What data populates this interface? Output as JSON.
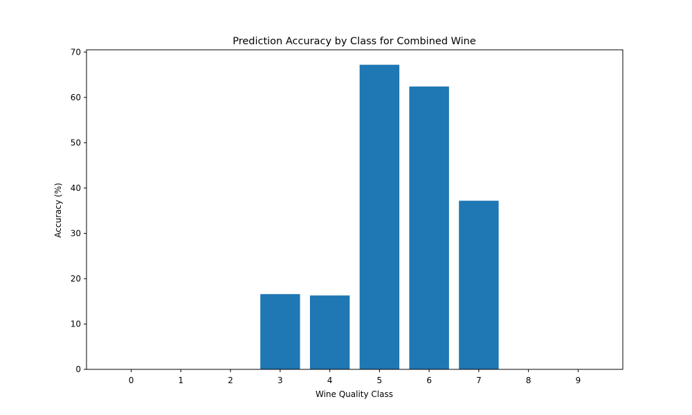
{
  "chart_data": {
    "type": "bar",
    "title": "Prediction Accuracy by Class for Combined Wine",
    "xlabel": "Wine Quality Class",
    "ylabel": "Accuracy (%)",
    "categories": [
      "0",
      "1",
      "2",
      "3",
      "4",
      "5",
      "6",
      "7",
      "8",
      "9"
    ],
    "values": [
      0,
      0,
      0,
      16.6,
      16.3,
      67.2,
      62.4,
      37.2,
      0,
      0
    ],
    "ylim": [
      0,
      70.5
    ],
    "yticks": [
      0,
      10,
      20,
      30,
      40,
      50,
      60,
      70
    ],
    "grid": false,
    "legend": "none",
    "bar_color": "#1f77b4"
  }
}
